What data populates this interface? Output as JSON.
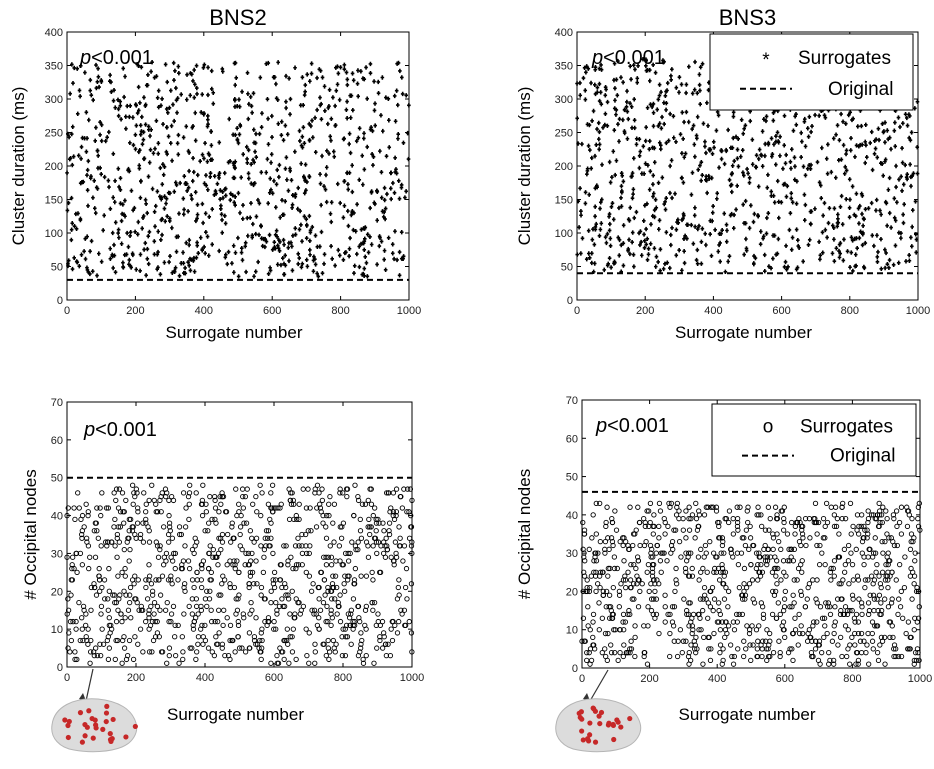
{
  "chart_data": [
    {
      "type": "scatter",
      "panel": "top-left",
      "title": "BNS2",
      "xlabel": "Surrogate number",
      "ylabel": "Cluster duration (ms)",
      "xlim": [
        0,
        1000
      ],
      "ylim": [
        0,
        400
      ],
      "xticks": [
        0,
        200,
        400,
        600,
        800,
        1000
      ],
      "yticks": [
        0,
        50,
        100,
        150,
        200,
        250,
        300,
        350,
        400
      ],
      "annotation": "p<0.001",
      "original_value": 30,
      "surrogate_count": 1000,
      "surrogate_range": [
        35,
        355
      ],
      "surrogate_marker": "star",
      "legend": null
    },
    {
      "type": "scatter",
      "panel": "top-right",
      "title": "BNS3",
      "xlabel": "Surrogate number",
      "ylabel": "Cluster duration (ms)",
      "xlim": [
        0,
        1000
      ],
      "ylim": [
        0,
        400
      ],
      "xticks": [
        0,
        200,
        400,
        600,
        800,
        1000
      ],
      "yticks": [
        0,
        50,
        100,
        150,
        200,
        250,
        300,
        350,
        400
      ],
      "annotation": "p<0.001",
      "original_value": 40,
      "surrogate_count": 1000,
      "surrogate_range": [
        42,
        360
      ],
      "surrogate_marker": "star",
      "legend": {
        "placement": "top-right",
        "surrogates_marker": "*",
        "surrogates_label": "Surrogates",
        "original_label": "Original"
      }
    },
    {
      "type": "scatter",
      "panel": "bottom-left",
      "title": "",
      "xlabel": "Surrogate number",
      "ylabel": "# Occipital nodes",
      "xlim": [
        0,
        1000
      ],
      "ylim": [
        0,
        70
      ],
      "xticks": [
        0,
        200,
        400,
        600,
        800,
        1000
      ],
      "yticks": [
        0,
        10,
        20,
        30,
        40,
        50,
        60,
        70
      ],
      "annotation": "p<0.001",
      "original_value": 50,
      "surrogate_count": 1000,
      "surrogate_range": [
        1,
        48
      ],
      "surrogate_marker": "circle",
      "legend": null,
      "inset": "brain-render"
    },
    {
      "type": "scatter",
      "panel": "bottom-right",
      "title": "",
      "xlabel": "Surrogate number",
      "ylabel": "# Occipital nodes",
      "xlim": [
        0,
        1000
      ],
      "ylim": [
        0,
        70
      ],
      "xticks": [
        0,
        200,
        400,
        600,
        800,
        1000
      ],
      "yticks": [
        0,
        10,
        20,
        30,
        40,
        50,
        60,
        70
      ],
      "annotation": "p<0.001",
      "original_value": 46,
      "surrogate_count": 1000,
      "surrogate_range": [
        1,
        43
      ],
      "surrogate_marker": "circle",
      "legend": {
        "placement": "top-right",
        "surrogates_marker": "o",
        "surrogates_label": "Surrogates",
        "original_label": "Original"
      },
      "inset": "brain-render"
    }
  ],
  "colors": {
    "marker": "#000000",
    "brain": "#dcdcdc",
    "brain_nodes": "#c62828"
  }
}
